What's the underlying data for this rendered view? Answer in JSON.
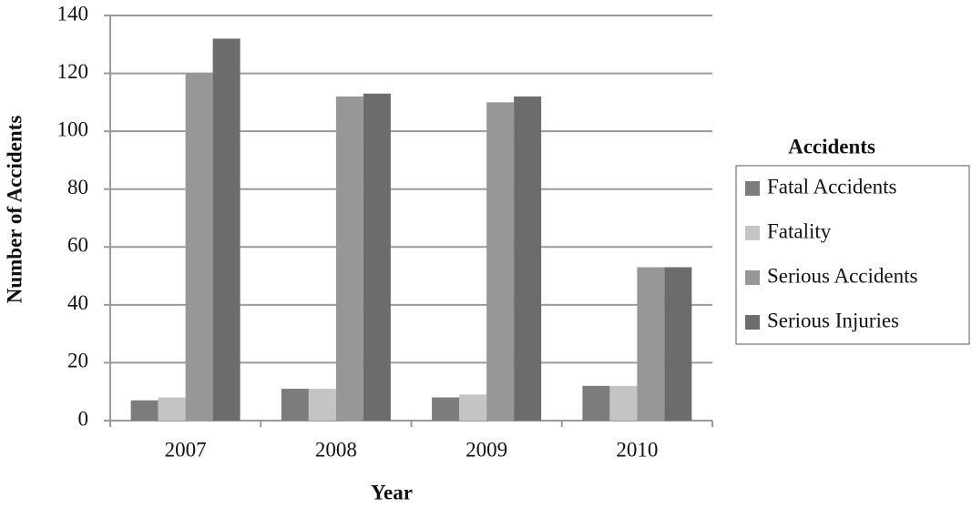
{
  "chart_data": {
    "type": "bar",
    "x_label": "Year",
    "y_label": "Number of Accidents",
    "categories": [
      "2007",
      "2008",
      "2009",
      "2010"
    ],
    "series": [
      {
        "name": "Fatal Accidents",
        "color": "#7c7c7c",
        "values": [
          7,
          11,
          8,
          12
        ]
      },
      {
        "name": "Fatality",
        "color": "#c4c4c4",
        "values": [
          8,
          11,
          9,
          12
        ]
      },
      {
        "name": "Serious Accidents",
        "color": "#979797",
        "values": [
          120,
          112,
          110,
          53
        ]
      },
      {
        "name": "Serious Injuries",
        "color": "#6c6c6c",
        "values": [
          132,
          113,
          112,
          53
        ]
      }
    ],
    "legend_title": "Accidents",
    "legend_position": "right",
    "ylim": [
      0,
      140
    ],
    "yticks": [
      0,
      20,
      40,
      60,
      80,
      100,
      120,
      140
    ],
    "grid": true
  }
}
